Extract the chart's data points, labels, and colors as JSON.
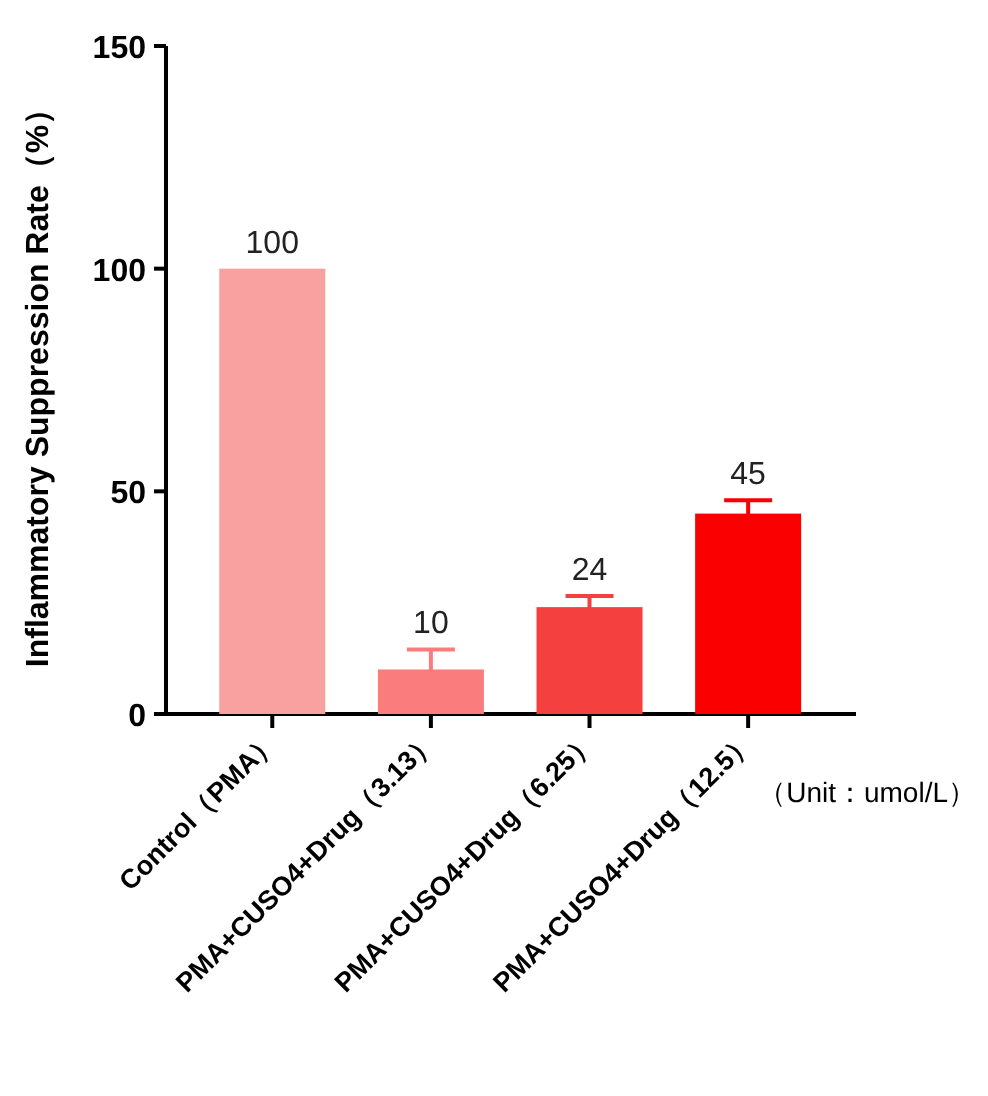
{
  "chart_data": {
    "type": "bar",
    "ylabel": "Inflammatory Suppression Rate（%）",
    "categories": [
      "Control（PMA）",
      "PMA+CUSO4+Drug（3.13）",
      "PMA+CUSO4+Drug（6.25）",
      "PMA+CUSO4+Drug（12.5）"
    ],
    "values": [
      100,
      10,
      24,
      45
    ],
    "colors": [
      "#f9a0a0",
      "#fb7c7c",
      "#f54040",
      "#fb0000"
    ],
    "errors": [
      null,
      4.5,
      2.5,
      3
    ],
    "data_labels": true,
    "ylim": [
      0,
      150
    ],
    "yticks": [
      0,
      50,
      100,
      150
    ],
    "grid": false,
    "annotations": [
      "（Unit：umol/L）"
    ]
  }
}
